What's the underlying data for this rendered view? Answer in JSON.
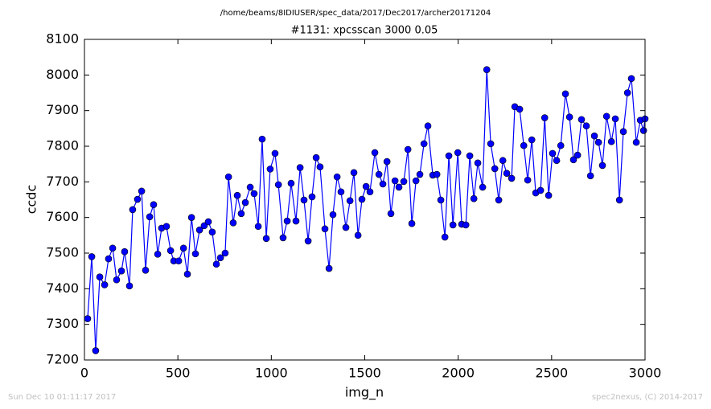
{
  "chart_data": {
    "type": "line",
    "suptitle": "/home/beams/8IDIUSER/spec_data/2017/Dec2017/archer20171204",
    "title": "#1131: xpcsscan 3000 0.05",
    "xlabel": "img_n",
    "ylabel": "ccdc",
    "footer_left": "Sun Dec 10 01:11:17 2017",
    "footer_right": "spec2nexus, (C) 2014-2017",
    "xlim": [
      0,
      3000
    ],
    "xticks": [
      0,
      500,
      1000,
      1500,
      2000,
      2500,
      3000
    ],
    "ylim": [
      7200,
      8100
    ],
    "yticks": [
      7200,
      7300,
      7400,
      7500,
      7600,
      7700,
      7800,
      7900,
      8000,
      8100
    ],
    "series": [
      {
        "color": "#0000ff",
        "x": [
          17,
          39,
          60,
          82,
          108,
          129,
          151,
          172,
          198,
          215,
          241,
          258,
          284,
          306,
          327,
          349,
          370,
          392,
          413,
          439,
          461,
          478,
          504,
          530,
          551,
          573,
          594,
          616,
          641,
          663,
          684,
          706,
          728,
          753,
          771,
          796,
          818,
          839,
          861,
          887,
          908,
          930,
          951,
          973,
          994,
          1020,
          1038,
          1063,
          1085,
          1106,
          1132,
          1154,
          1175,
          1197,
          1218,
          1240,
          1261,
          1287,
          1309,
          1330,
          1352,
          1373,
          1399,
          1421,
          1442,
          1464,
          1485,
          1507,
          1528,
          1554,
          1576,
          1597,
          1619,
          1640,
          1662,
          1683,
          1709,
          1731,
          1752,
          1774,
          1795,
          1817,
          1838,
          1864,
          1886,
          1907,
          1929,
          1950,
          1972,
          1998,
          2019,
          2041,
          2062,
          2084,
          2105,
          2131,
          2153,
          2174,
          2196,
          2217,
          2239,
          2260,
          2286,
          2303,
          2329,
          2351,
          2372,
          2394,
          2415,
          2441,
          2463,
          2484,
          2505,
          2527,
          2549,
          2574,
          2596,
          2617,
          2639,
          2660,
          2686,
          2708,
          2729,
          2751,
          2772,
          2794,
          2820,
          2841,
          2863,
          2884,
          2906,
          2927,
          2953,
          2975,
          2992,
          3000
        ],
        "values": [
          7316,
          7490,
          7226,
          7433,
          7411,
          7484,
          7514,
          7425,
          7450,
          7504,
          7408,
          7622,
          7651,
          7674,
          7452,
          7602,
          7636,
          7497,
          7570,
          7575,
          7507,
          7478,
          7478,
          7514,
          7441,
          7600,
          7498,
          7565,
          7577,
          7588,
          7559,
          7469,
          7487,
          7500,
          7714,
          7585,
          7662,
          7611,
          7642,
          7685,
          7667,
          7575,
          7820,
          7541,
          7736,
          7780,
          7692,
          7543,
          7590,
          7696,
          7590,
          7740,
          7649,
          7534,
          7658,
          7768,
          7742,
          7568,
          7457,
          7608,
          7714,
          7672,
          7572,
          7647,
          7726,
          7550,
          7651,
          7687,
          7672,
          7782,
          7721,
          7694,
          7757,
          7611,
          7703,
          7685,
          7701,
          7791,
          7583,
          7703,
          7721,
          7807,
          7857,
          7719,
          7721,
          7649,
          7545,
          7773,
          7579,
          7782,
          7581,
          7579,
          7773,
          7653,
          7753,
          7685,
          8015,
          7807,
          7737,
          7649,
          7760,
          7724,
          7710,
          7911,
          7904,
          7802,
          7705,
          7818,
          7669,
          7676,
          7880,
          7662,
          7780,
          7760,
          7802,
          7947,
          7882,
          7762,
          7775,
          7875,
          7857,
          7717,
          7829,
          7811,
          7746,
          7884,
          7813,
          7877,
          7649,
          7841,
          7950,
          7990,
          7811,
          7873,
          7844,
          7877
        ]
      }
    ]
  }
}
